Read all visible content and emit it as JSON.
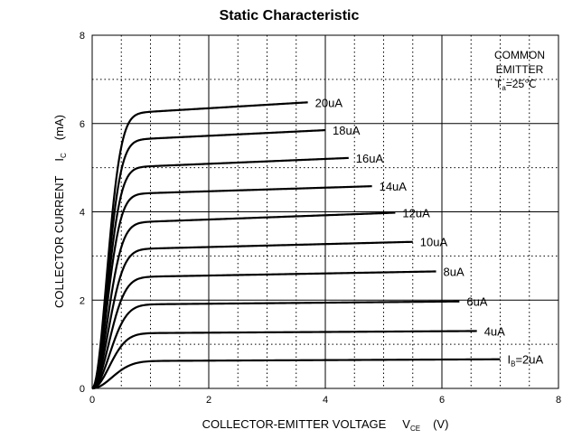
{
  "chart_data": {
    "type": "line",
    "title": "Static Characteristic",
    "xlabel": {
      "main": "COLLECTOR-EMITTER VOLTAGE",
      "symbol": "V",
      "subscript": "CE",
      "unit": "(V)"
    },
    "ylabel": {
      "main": "COLLECTOR CURRENT",
      "symbol": "I",
      "subscript": "C",
      "unit": "(mA)"
    },
    "xlim": [
      0,
      8
    ],
    "ylim": [
      0,
      8
    ],
    "xticks": [
      0,
      2,
      4,
      6,
      8
    ],
    "yticks": [
      0,
      2,
      4,
      6,
      8
    ],
    "xticks_labels": [
      "0",
      "2",
      "4",
      "6",
      "8"
    ],
    "yticks_labels": [
      "0",
      "2",
      "4",
      "6",
      "8"
    ],
    "grid": true,
    "annotation": {
      "line1": "COMMON",
      "line2": "EMITTER",
      "line3_symbol": "T",
      "line3_subscript": "a",
      "line3_rest": "=25℃"
    },
    "series": [
      {
        "name": "IB=2uA",
        "label": "=2uA",
        "label_prefix": "I",
        "label_subscript": "B",
        "knee": 0.55,
        "sat": 0.62,
        "end_x": 7.0,
        "end_y": 0.66
      },
      {
        "name": "4uA",
        "label": "4uA",
        "knee": 0.48,
        "sat": 1.25,
        "end_x": 6.6,
        "end_y": 1.3
      },
      {
        "name": "6uA",
        "label": "6uA",
        "knee": 0.48,
        "sat": 1.9,
        "end_x": 6.3,
        "end_y": 1.97
      },
      {
        "name": "8uA",
        "label": "8uA",
        "knee": 0.46,
        "sat": 2.52,
        "end_x": 5.9,
        "end_y": 2.65
      },
      {
        "name": "10uA",
        "label": "10uA",
        "knee": 0.44,
        "sat": 3.15,
        "end_x": 5.5,
        "end_y": 3.32
      },
      {
        "name": "12uA",
        "label": "12uA",
        "knee": 0.42,
        "sat": 3.75,
        "end_x": 5.2,
        "end_y": 3.98
      },
      {
        "name": "14uA",
        "label": "14uA",
        "knee": 0.4,
        "sat": 4.4,
        "end_x": 4.8,
        "end_y": 4.58
      },
      {
        "name": "16uA",
        "label": "16uA",
        "knee": 0.4,
        "sat": 5.0,
        "end_x": 4.4,
        "end_y": 5.22
      },
      {
        "name": "18uA",
        "label": "18uA",
        "knee": 0.4,
        "sat": 5.62,
        "end_x": 4.0,
        "end_y": 5.85
      },
      {
        "name": "20uA",
        "label": "20uA",
        "knee": 0.4,
        "sat": 6.22,
        "end_x": 3.7,
        "end_y": 6.48
      }
    ]
  }
}
